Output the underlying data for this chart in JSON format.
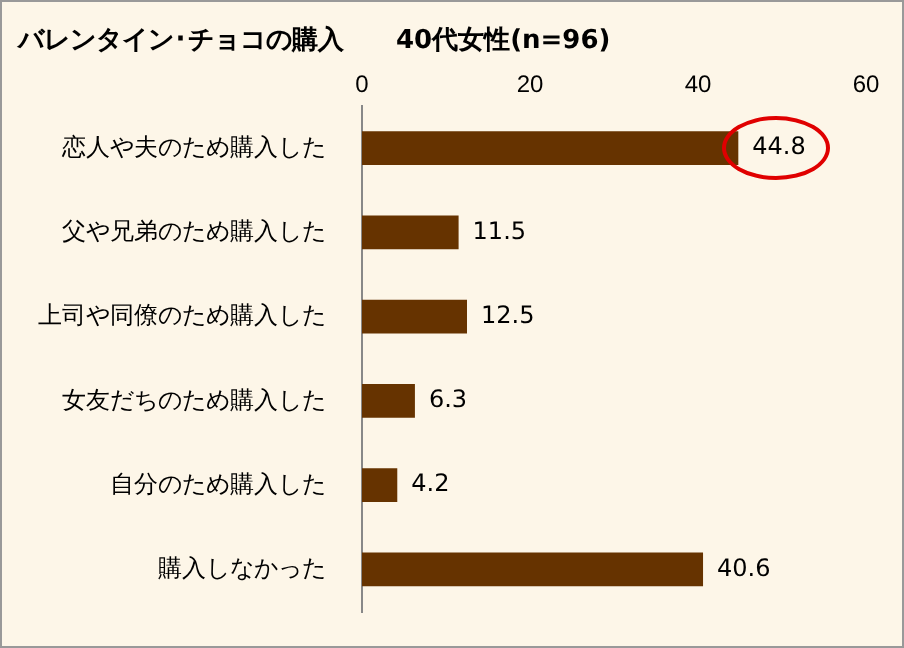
{
  "chart_data": {
    "type": "bar",
    "orientation": "horizontal",
    "title": "バレンタイン･チョコの購入　　40代女性(n=96)",
    "categories": [
      "恋人や夫のため購入した",
      "父や兄弟のため購入した",
      "上司や同僚のため購入した",
      "女友だちのため購入した",
      "自分のため購入した",
      "購入しなかった"
    ],
    "values": [
      44.8,
      11.5,
      12.5,
      6.3,
      4.2,
      40.6
    ],
    "color": "#663300",
    "xlim": [
      0,
      60
    ],
    "xticks": [
      0,
      20,
      40,
      60
    ],
    "grid": false,
    "legend": false,
    "data_labels": true
  }
}
